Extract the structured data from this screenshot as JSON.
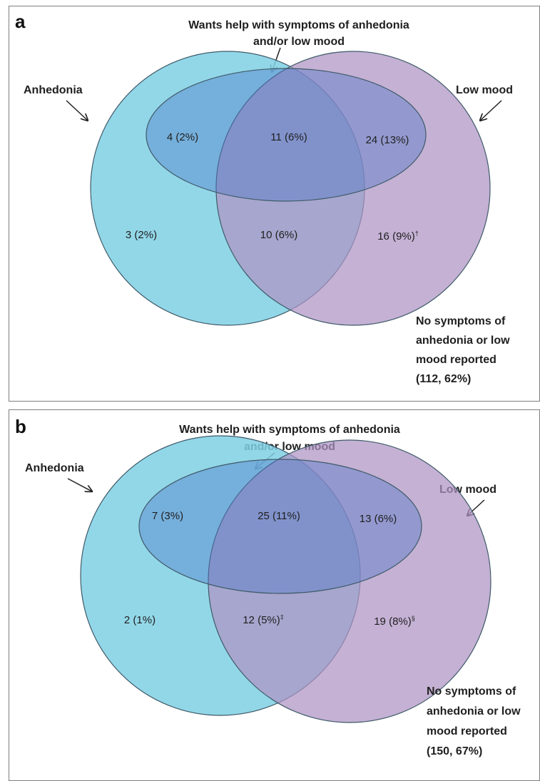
{
  "panels": [
    {
      "letter": "a",
      "want_help_line1": "Wants help with symptoms of anhedonia",
      "want_help_line2": "and/or low mood",
      "anhedonia_label": "Anhedonia",
      "low_mood_label": "Low mood",
      "counts": {
        "help_anhedonia_only": "4 (2%)",
        "help_both": "11 (6%)",
        "help_low_mood_only": "24 (13%)",
        "anhedonia_only": "3 (2%)",
        "both_no_help": "10 (6%)",
        "both_no_help_mark": "",
        "low_mood_only": "16 (9%)",
        "low_mood_only_mark": "†"
      },
      "none_lines": [
        "No symptoms of",
        "anhedonia or low",
        "mood reported",
        "(112, 62%)"
      ]
    },
    {
      "letter": "b",
      "want_help_line1": "Wants help with symptoms of anhedonia",
      "want_help_line2": "and/or low mood",
      "anhedonia_label": "Anhedonia",
      "low_mood_label": "Low mood",
      "counts": {
        "help_anhedonia_only": "7 (3%)",
        "help_both": "25 (11%)",
        "help_low_mood_only": "13 (6%)",
        "anhedonia_only": "2 (1%)",
        "both_no_help": "12 (5%)",
        "both_no_help_mark": "‡",
        "low_mood_only": "19 (8%)",
        "low_mood_only_mark": "§"
      },
      "none_lines": [
        "No symptoms of",
        "anhedonia or low",
        "mood reported",
        "(150, 67%)"
      ]
    }
  ],
  "colors": {
    "anhedonia_fill": "#7fd0e4",
    "low_mood_fill": "#ad93c4",
    "help_fill": "#4f78c8",
    "outline": "#3f5a68"
  }
}
